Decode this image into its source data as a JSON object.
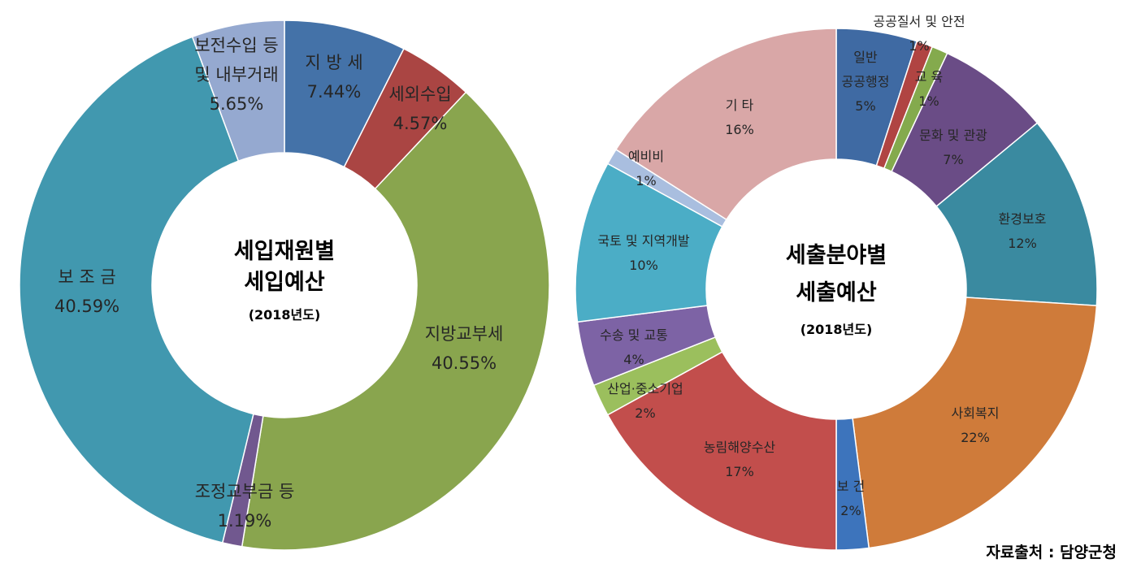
{
  "source": "자료출처 : 담양군청",
  "chart_data": [
    {
      "type": "pie",
      "donut": true,
      "title_lines": [
        "세입재원별",
        "세입예산"
      ],
      "subtitle": "(2018년도)",
      "slices": [
        {
          "name": "지 방 세",
          "value": 7.44,
          "label": "7.44%",
          "color": "#4472A8"
        },
        {
          "name": "세외수입",
          "value": 4.57,
          "label": "4.57%",
          "color": "#AA4543"
        },
        {
          "name": "지방교부세",
          "value": 40.55,
          "label": "40.55%",
          "color": "#89A54E"
        },
        {
          "name": "조정교부금 등",
          "value": 1.19,
          "label": "1.19%",
          "color": "#71588F"
        },
        {
          "name": "보 조 금",
          "value": 40.59,
          "label": "40.59%",
          "color": "#4198AF"
        },
        {
          "name": "보전수입 등 및 내부거래",
          "value": 5.65,
          "label": "5.65%",
          "color": "#95A9D0"
        }
      ]
    },
    {
      "type": "pie",
      "donut": true,
      "title_lines": [
        "세출분야별",
        "세출예산"
      ],
      "subtitle": "(2018년도)",
      "slices": [
        {
          "name": "일반 공공행정",
          "value": 5,
          "label": "5%",
          "color": "#3F6AA3"
        },
        {
          "name": "공공질서 및 안전",
          "value": 1,
          "label": "1%",
          "color": "#B04442"
        },
        {
          "name": "교 육",
          "value": 1,
          "label": "1%",
          "color": "#84AA4D"
        },
        {
          "name": "문화 및 관광",
          "value": 7,
          "label": "7%",
          "color": "#6A4C86"
        },
        {
          "name": "환경보호",
          "value": 12,
          "label": "12%",
          "color": "#3A8AA0"
        },
        {
          "name": "사회복지",
          "value": 22,
          "label": "22%",
          "color": "#CF7B3A"
        },
        {
          "name": "보 건",
          "value": 2,
          "label": "2%",
          "color": "#3D74BC"
        },
        {
          "name": "농림해양수산",
          "value": 17,
          "label": "17%",
          "color": "#C24E4C"
        },
        {
          "name": "산업·중소기업",
          "value": 2,
          "label": "2%",
          "color": "#9BBF5D"
        },
        {
          "name": "수송 및 교통",
          "value": 4,
          "label": "4%",
          "color": "#7D63A5"
        },
        {
          "name": "국토 및 지역개발",
          "value": 10,
          "label": "10%",
          "color": "#4BADC6"
        },
        {
          "name": "예비비",
          "value": 1,
          "label": "1%",
          "color": "#A9BEDF"
        },
        {
          "name": "기 타",
          "value": 16,
          "label": "16%",
          "color": "#D9A7A7"
        }
      ]
    }
  ]
}
